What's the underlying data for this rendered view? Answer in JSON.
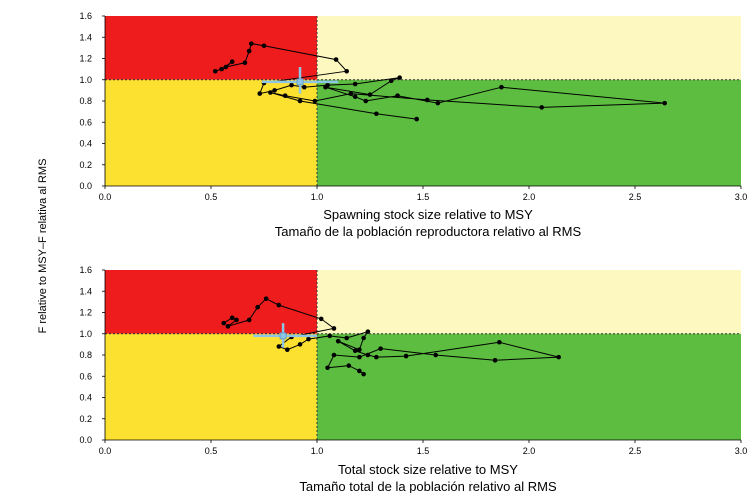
{
  "shared_ylabel": "F relative to MSY–F relativa al RMS",
  "chart_data": [
    {
      "type": "scatter",
      "xlabel": "Spawning stock size relative to MSY",
      "xlabel_es": "Tamaño de la población reproductora relativo al RMS",
      "xlim": [
        0,
        3
      ],
      "ylim": [
        0,
        1.6
      ],
      "xticks": [
        "0.0",
        "0.5",
        "1.0",
        "1.5",
        "2.0",
        "2.5",
        "3.0"
      ],
      "yticks": [
        "0.0",
        "0.2",
        "0.4",
        "0.6",
        "0.8",
        "1.0",
        "1.2",
        "1.4",
        "1.6"
      ],
      "reference_lines": {
        "x": 1.0,
        "y": 1.0
      },
      "quadrant_colors": {
        "upper_left": "#ee1c1c",
        "upper_right": "#fdf8c0",
        "lower_left": "#fde130",
        "lower_right": "#5cbd40"
      },
      "series": [
        {
          "x": [
            0.52,
            0.55,
            0.6,
            0.57,
            0.66,
            0.68,
            0.69,
            0.75,
            1.09,
            1.14,
            0.75,
            0.73,
            0.8,
            0.88,
            0.94,
            1.05,
            1.18,
            1.39,
            1.35,
            1.25,
            1.04,
            1.18,
            1.23,
            1.38,
            1.57,
            1.87,
            2.64,
            2.06,
            1.52,
            1.16,
            0.99,
            0.85,
            0.78,
            0.92,
            1.28,
            1.47
          ],
          "y": [
            1.08,
            1.1,
            1.17,
            1.12,
            1.16,
            1.27,
            1.34,
            1.32,
            1.19,
            1.08,
            0.97,
            0.87,
            0.9,
            0.95,
            0.93,
            0.95,
            0.96,
            1.02,
            0.99,
            0.86,
            0.93,
            0.84,
            0.8,
            0.85,
            0.78,
            0.93,
            0.78,
            0.74,
            0.81,
            0.87,
            0.8,
            0.85,
            0.88,
            0.8,
            0.68,
            0.63
          ]
        }
      ],
      "latest_point": {
        "x": 0.92,
        "y": 0.98,
        "x_err": [
          0.74,
          1.1
        ],
        "y_err": [
          0.87,
          1.12
        ]
      }
    },
    {
      "type": "scatter",
      "xlabel": "Total stock size relative to MSY",
      "xlabel_es": "Tamaño total de la población relativo al RMS",
      "xlim": [
        0,
        3
      ],
      "ylim": [
        0,
        1.6
      ],
      "xticks": [
        "0.0",
        "0.5",
        "1.0",
        "1.5",
        "2.0",
        "2.5",
        "3.0"
      ],
      "yticks": [
        "0.0",
        "0.2",
        "0.4",
        "0.6",
        "0.8",
        "1.0",
        "1.2",
        "1.4",
        "1.6"
      ],
      "reference_lines": {
        "x": 1.0,
        "y": 1.0
      },
      "quadrant_colors": {
        "upper_left": "#ee1c1c",
        "upper_right": "#fdf8c0",
        "lower_left": "#fde130",
        "lower_right": "#5cbd40"
      },
      "series": [
        {
          "x": [
            0.56,
            0.6,
            0.62,
            0.58,
            0.68,
            0.72,
            0.76,
            0.82,
            1.02,
            1.08,
            0.88,
            0.82,
            0.86,
            0.92,
            0.96,
            1.06,
            1.14,
            1.24,
            1.22,
            1.2,
            1.1,
            1.18,
            1.24,
            1.28,
            1.42,
            1.86,
            2.14,
            1.84,
            1.56,
            1.3,
            1.2,
            1.08,
            1.05,
            1.15,
            1.2,
            1.22
          ],
          "y": [
            1.1,
            1.15,
            1.13,
            1.07,
            1.13,
            1.25,
            1.33,
            1.27,
            1.14,
            1.05,
            0.97,
            0.88,
            0.85,
            0.9,
            0.95,
            0.98,
            0.96,
            1.02,
            0.96,
            0.85,
            0.93,
            0.84,
            0.8,
            0.78,
            0.79,
            0.92,
            0.78,
            0.75,
            0.8,
            0.86,
            0.78,
            0.8,
            0.68,
            0.7,
            0.65,
            0.62
          ]
        }
      ],
      "latest_point": {
        "x": 0.84,
        "y": 0.98,
        "x_err": [
          0.7,
          1.0
        ],
        "y_err": [
          0.87,
          1.1
        ]
      }
    }
  ]
}
